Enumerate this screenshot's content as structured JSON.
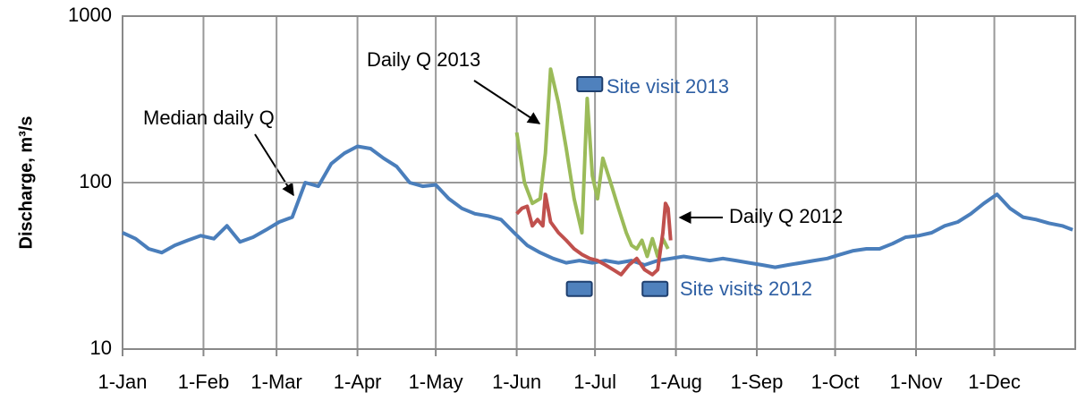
{
  "chart_data": {
    "type": "line",
    "ylabel": "Discharge, m³/s",
    "log_y": true,
    "grid": true,
    "xlim": [
      0,
      365
    ],
    "xticks": [
      {
        "value": 0,
        "label": "1-Jan"
      },
      {
        "value": 31,
        "label": "1-Feb"
      },
      {
        "value": 59,
        "label": "1-Mar"
      },
      {
        "value": 90,
        "label": "1-Apr"
      },
      {
        "value": 120,
        "label": "1-May"
      },
      {
        "value": 151,
        "label": "1-Jun"
      },
      {
        "value": 181,
        "label": "1-Jul"
      },
      {
        "value": 212,
        "label": "1-Aug"
      },
      {
        "value": 243,
        "label": "1-Sep"
      },
      {
        "value": 273,
        "label": "1-Oct"
      },
      {
        "value": 304,
        "label": "1-Nov"
      },
      {
        "value": 334,
        "label": "1-Dec"
      }
    ],
    "ylim": [
      10,
      1000
    ],
    "yticks": [
      10,
      100,
      1000
    ],
    "series": [
      {
        "name": "Median daily Q",
        "type": "line",
        "color": "#4a7ebb",
        "x": [
          0,
          5,
          10,
          15,
          20,
          25,
          30,
          35,
          40,
          45,
          50,
          55,
          60,
          65,
          70,
          75,
          80,
          85,
          90,
          95,
          100,
          105,
          110,
          115,
          120,
          125,
          130,
          135,
          140,
          145,
          150,
          155,
          160,
          165,
          170,
          175,
          180,
          185,
          190,
          195,
          200,
          205,
          210,
          215,
          220,
          225,
          230,
          235,
          240,
          245,
          250,
          255,
          260,
          265,
          270,
          275,
          280,
          285,
          290,
          295,
          300,
          305,
          310,
          315,
          320,
          325,
          330,
          335,
          340,
          345,
          350,
          355,
          360,
          364
        ],
        "values": [
          50,
          46,
          40,
          38,
          42,
          45,
          48,
          46,
          55,
          44,
          47,
          52,
          58,
          62,
          100,
          95,
          130,
          150,
          165,
          160,
          140,
          125,
          100,
          95,
          97,
          80,
          70,
          65,
          63,
          60,
          50,
          42,
          38,
          35,
          33,
          34,
          33,
          34,
          33,
          34,
          32,
          34,
          35,
          36,
          35,
          34,
          35,
          34,
          33,
          32,
          31,
          32,
          33,
          34,
          35,
          37,
          39,
          40,
          40,
          43,
          47,
          48,
          50,
          55,
          58,
          65,
          75,
          85,
          70,
          62,
          60,
          57,
          55,
          52
        ]
      },
      {
        "name": "Daily Q 2013",
        "type": "line",
        "color": "#9bbb59",
        "x": [
          151,
          154,
          157,
          160,
          162,
          164,
          167,
          170,
          173,
          176,
          178,
          180,
          182,
          184,
          187,
          190,
          193,
          195,
          197,
          199,
          201,
          203,
          205,
          207,
          209
        ],
        "values": [
          200,
          100,
          75,
          80,
          150,
          480,
          300,
          160,
          80,
          50,
          320,
          110,
          80,
          140,
          100,
          70,
          50,
          42,
          40,
          45,
          36,
          46,
          36,
          46,
          40
        ]
      },
      {
        "name": "Daily Q 2012",
        "type": "line",
        "color": "#c0504d",
        "x": [
          151,
          153,
          155,
          157,
          159,
          161,
          162,
          164,
          167,
          170,
          173,
          176,
          179,
          182,
          185,
          188,
          191,
          194,
          197,
          200,
          203,
          205,
          207,
          208,
          209,
          210
        ],
        "values": [
          65,
          70,
          72,
          55,
          60,
          55,
          85,
          58,
          50,
          45,
          40,
          37,
          35,
          34,
          32,
          30,
          28,
          32,
          35,
          30,
          28,
          30,
          50,
          75,
          70,
          45
        ]
      },
      {
        "name": "Site visit 2013",
        "type": "marker",
        "color": "#4f81bd",
        "x": [
          179
        ],
        "values": [
          390
        ]
      },
      {
        "name": "Site visits 2012",
        "type": "marker",
        "color": "#4f81bd",
        "x": [
          175,
          204
        ],
        "values": [
          23,
          23
        ]
      }
    ]
  }
}
